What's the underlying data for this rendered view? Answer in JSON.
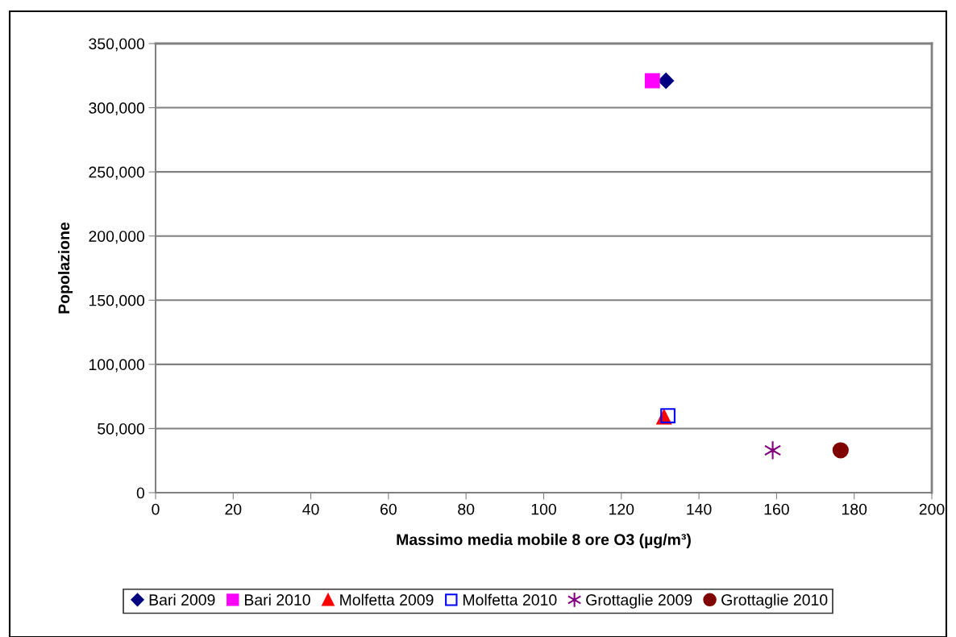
{
  "chart_data": {
    "type": "scatter",
    "xlabel": "Massimo media mobile 8 ore O3 (µg/m³)",
    "ylabel": "Popolazione",
    "xlim": [
      0,
      200
    ],
    "xticks": [
      0,
      20,
      40,
      60,
      80,
      100,
      120,
      140,
      160,
      180,
      200
    ],
    "ylim": [
      0,
      350000
    ],
    "yticks": [
      {
        "value": 0,
        "label": "0"
      },
      {
        "value": 50000,
        "label": "50,000"
      },
      {
        "value": 100000,
        "label": "100,000"
      },
      {
        "value": 150000,
        "label": "150,000"
      },
      {
        "value": 200000,
        "label": "200,000"
      },
      {
        "value": 250000,
        "label": "250,000"
      },
      {
        "value": 300000,
        "label": "300,000"
      },
      {
        "value": 350000,
        "label": "350,000"
      }
    ],
    "grid": "y",
    "legend": "bottom",
    "series": [
      {
        "name": "Bari 2009",
        "color": "#000080",
        "marker": "diamond",
        "x": [
          131.5
        ],
        "values": [
          321000
        ]
      },
      {
        "name": "Bari 2010",
        "color": "#ff00ff",
        "marker": "square",
        "x": [
          128
        ],
        "values": [
          321000
        ]
      },
      {
        "name": "Molfetta 2009",
        "color": "#ff0000",
        "marker": "triangle",
        "x": [
          131
        ],
        "values": [
          59000
        ]
      },
      {
        "name": "Molfetta 2010",
        "color": "#0000ff",
        "marker": "square",
        "x": [
          132
        ],
        "values": [
          60000
        ]
      },
      {
        "name": "Grottaglie 2009",
        "color": "#800080",
        "marker": "cross",
        "x": [
          159
        ],
        "values": [
          33000
        ]
      },
      {
        "name": "Grottaglie 2010",
        "color": "#800000",
        "marker": "circle",
        "x": [
          176.5
        ],
        "values": [
          33000
        ]
      }
    ]
  }
}
